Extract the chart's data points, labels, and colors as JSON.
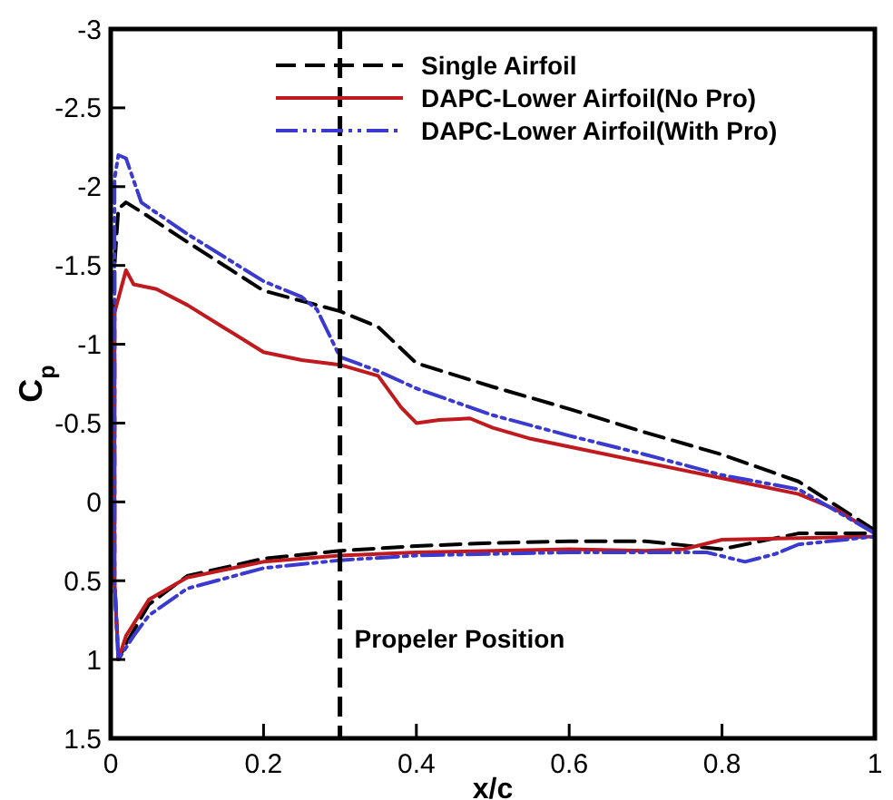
{
  "chart_data": {
    "type": "line",
    "xlabel": "x/c",
    "ylabel": "C$_{p}$",
    "xlim": [
      0,
      1
    ],
    "ylim": [
      1.5,
      -3
    ],
    "xticks": [
      0,
      0.2,
      0.4,
      0.6,
      0.8,
      1
    ],
    "yticks": [
      -3,
      -2.5,
      -2,
      -1.5,
      -1,
      -0.5,
      0,
      0.5,
      1,
      1.5
    ],
    "grid": false,
    "legend": "top right",
    "marker": "none",
    "ref_lines": [
      {
        "axis": "x",
        "value": 0.3,
        "label": "Propeler Position",
        "color": "#000000",
        "line_style": "dashed"
      }
    ],
    "series": [
      {
        "name": "Single Airfoil",
        "color": "#000000",
        "line_style": "dashed",
        "x": [
          1,
          0.9,
          0.8,
          0.7,
          0.6,
          0.5,
          0.4,
          0.35,
          0.3,
          0.2,
          0.1,
          0.04,
          0.02,
          0.01,
          0.005,
          0.005,
          0.01,
          0.02,
          0.05,
          0.1,
          0.2,
          0.3,
          0.4,
          0.5,
          0.6,
          0.7,
          0.8,
          0.9,
          1
        ],
        "values": [
          0.18,
          -0.13,
          -0.3,
          -0.44,
          -0.59,
          -0.73,
          -0.88,
          -1.11,
          -1.21,
          -1.34,
          -1.65,
          -1.84,
          -1.9,
          -1.86,
          -1.5,
          0.5,
          1.0,
          0.9,
          0.65,
          0.47,
          0.36,
          0.31,
          0.28,
          0.26,
          0.25,
          0.25,
          0.3,
          0.2,
          0.2
        ]
      },
      {
        "name": "DAPC-Lower Airfoil(No Pro)",
        "color": "#c0191e",
        "line_style": "solid",
        "x": [
          1,
          0.95,
          0.9,
          0.8,
          0.7,
          0.6,
          0.55,
          0.5,
          0.47,
          0.43,
          0.4,
          0.38,
          0.35,
          0.3,
          0.25,
          0.2,
          0.15,
          0.1,
          0.06,
          0.03,
          0.02,
          0.005,
          0.005,
          0.01,
          0.02,
          0.05,
          0.1,
          0.2,
          0.3,
          0.4,
          0.5,
          0.6,
          0.7,
          0.75,
          0.8,
          0.9,
          1
        ],
        "values": [
          0.2,
          0.05,
          -0.05,
          -0.15,
          -0.25,
          -0.35,
          -0.4,
          -0.47,
          -0.53,
          -0.52,
          -0.5,
          -0.6,
          -0.8,
          -0.87,
          -0.9,
          -0.95,
          -1.1,
          -1.25,
          -1.35,
          -1.38,
          -1.47,
          -1.2,
          0.5,
          1.0,
          0.85,
          0.62,
          0.48,
          0.38,
          0.34,
          0.32,
          0.31,
          0.3,
          0.31,
          0.3,
          0.24,
          0.23,
          0.22
        ]
      },
      {
        "name": "DAPC-Lower Airfoil(With Pro)",
        "color": "#3a3ad0",
        "line_style": "dotted",
        "x": [
          1,
          0.9,
          0.8,
          0.7,
          0.6,
          0.5,
          0.4,
          0.35,
          0.3,
          0.27,
          0.25,
          0.2,
          0.1,
          0.04,
          0.02,
          0.01,
          0.005,
          0.005,
          0.01,
          0.03,
          0.05,
          0.1,
          0.2,
          0.3,
          0.4,
          0.5,
          0.6,
          0.7,
          0.78,
          0.83,
          0.87,
          0.9,
          1
        ],
        "values": [
          0.2,
          -0.08,
          -0.17,
          -0.3,
          -0.42,
          -0.55,
          -0.72,
          -0.83,
          -0.92,
          -1.22,
          -1.3,
          -1.4,
          -1.7,
          -1.9,
          -2.18,
          -2.2,
          -2.05,
          0.5,
          1.0,
          0.85,
          0.72,
          0.55,
          0.42,
          0.37,
          0.34,
          0.33,
          0.32,
          0.32,
          0.32,
          0.38,
          0.33,
          0.27,
          0.22
        ]
      }
    ]
  }
}
